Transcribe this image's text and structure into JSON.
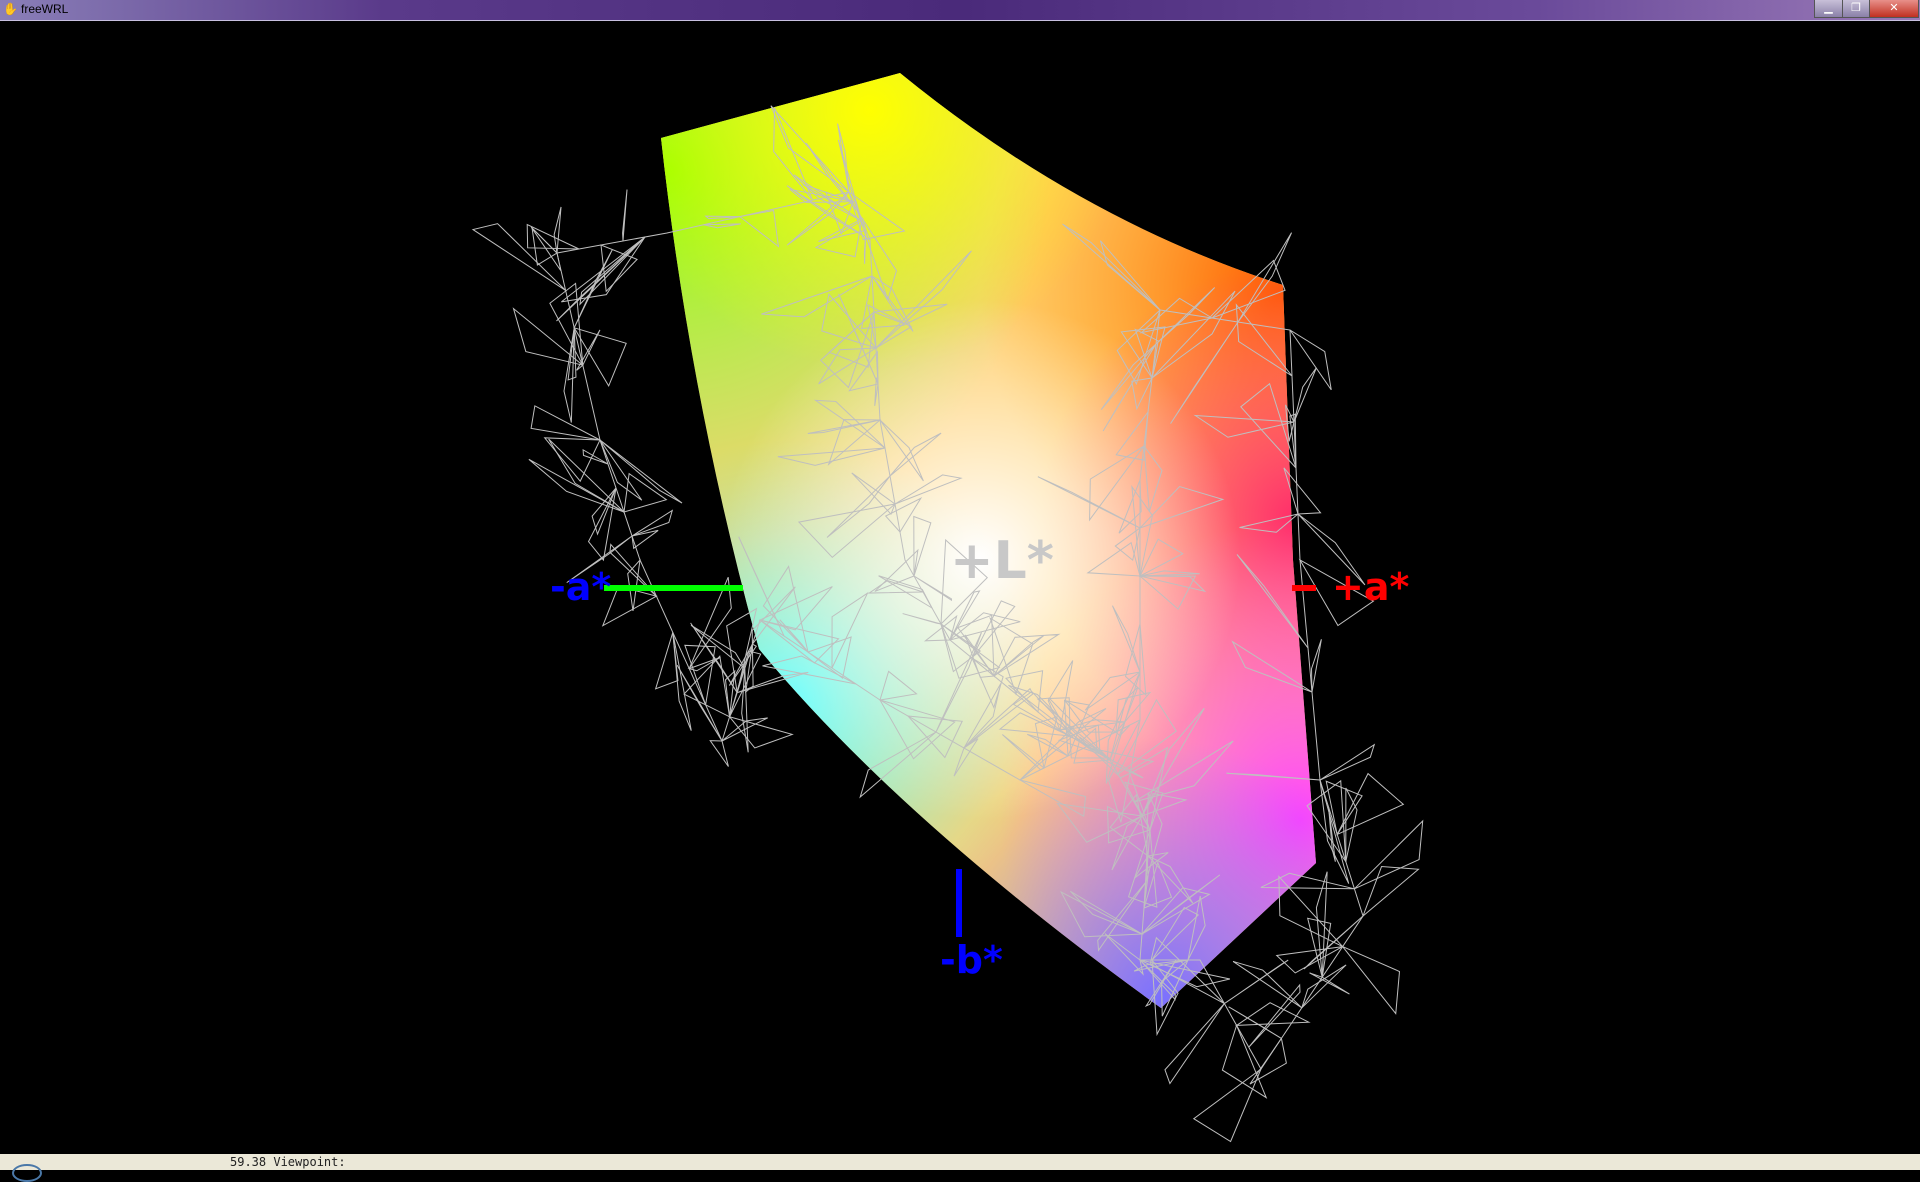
{
  "window": {
    "title": "freeWRL",
    "app_icon": "freewrl-hand-icon",
    "minimize_icon": "minimize-icon",
    "maximize_icon": "restore-icon",
    "close_icon": "close-icon"
  },
  "scene": {
    "axes": {
      "minus_a": {
        "label": "-a*",
        "label_color": "#0000ff",
        "line_color": "#00ff00"
      },
      "plus_a": {
        "label": "+a*",
        "label_color": "#ff0000",
        "line_color": "#ff0000"
      },
      "minus_b": {
        "label": "-b*",
        "label_color": "#0000ff",
        "line_color": "#0000ff"
      },
      "plus_l": {
        "label": "+L*",
        "label_color": "#c8c8c8"
      }
    },
    "wireframe_color": "#bfbfbf"
  },
  "status": {
    "text": "59.38 Viewpoint:"
  }
}
